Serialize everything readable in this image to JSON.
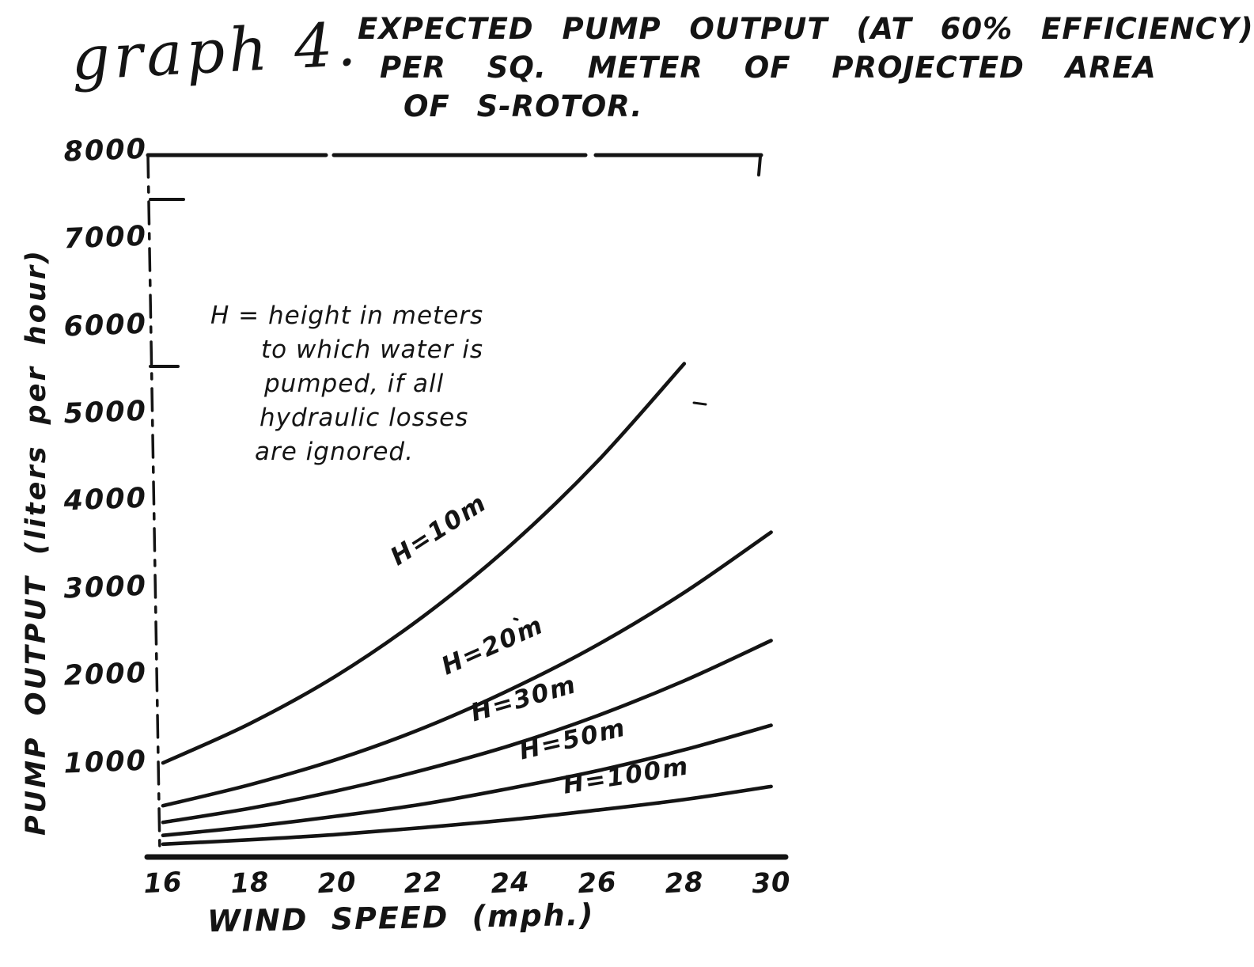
{
  "figure_label": "graph 4.",
  "title": {
    "line1": "EXPECTED PUMP OUTPUT (AT 60% EFFICIENCY)",
    "line2": "PER SQ. METER OF PROJECTED AREA",
    "line3": "OF S-ROTOR."
  },
  "note": {
    "line1": "H = height in meters",
    "line2": "to which water is",
    "line3": "pumped, if all",
    "line4": "hydraulic losses",
    "line5": "are ignored."
  },
  "axes": {
    "y_label": "PUMP OUTPUT (liters per hour)",
    "x_label": "WIND SPEED (mph.)",
    "y_ticks": [
      "8000",
      "7000",
      "6000",
      "5000",
      "4000",
      "3000",
      "2000",
      "1000"
    ],
    "x_ticks": [
      "16",
      "18",
      "20",
      "22",
      "24",
      "26",
      "28",
      "30"
    ]
  },
  "ink_color": "#141414",
  "paper_color": "#ffffff",
  "chart_data": {
    "type": "line",
    "title": "EXPECTED PUMP OUTPUT (AT 60% EFFICIENCY) PER SQ. METER OF PROJECTED AREA OF S-ROTOR.",
    "xlabel": "WIND SPEED (mph.)",
    "ylabel": "PUMP OUTPUT (liters per hour)",
    "xlim": [
      16,
      30
    ],
    "ylim": [
      0,
      8000
    ],
    "x": [
      16,
      18,
      20,
      22,
      24,
      26,
      28,
      30
    ],
    "series": [
      {
        "name": "H=10m",
        "values": [
          1050,
          1500,
          2050,
          2730,
          3540,
          4500,
          5620,
          null
        ]
      },
      {
        "name": "H=20m",
        "values": [
          560,
          800,
          1090,
          1450,
          1890,
          2400,
          3000,
          3690
        ]
      },
      {
        "name": "H=30m",
        "values": [
          370,
          530,
          730,
          970,
          1250,
          1590,
          1990,
          2450
        ]
      },
      {
        "name": "H=50m",
        "values": [
          220,
          320,
          440,
          580,
          760,
          960,
          1200,
          1480
        ]
      },
      {
        "name": "H=100m",
        "values": [
          120,
          170,
          230,
          310,
          400,
          510,
          630,
          780
        ]
      }
    ],
    "grid": false,
    "legend_position": "inline-curve-labels",
    "annotation": "H = height in meters to which water is pumped, if all hydraulic losses are ignored."
  }
}
